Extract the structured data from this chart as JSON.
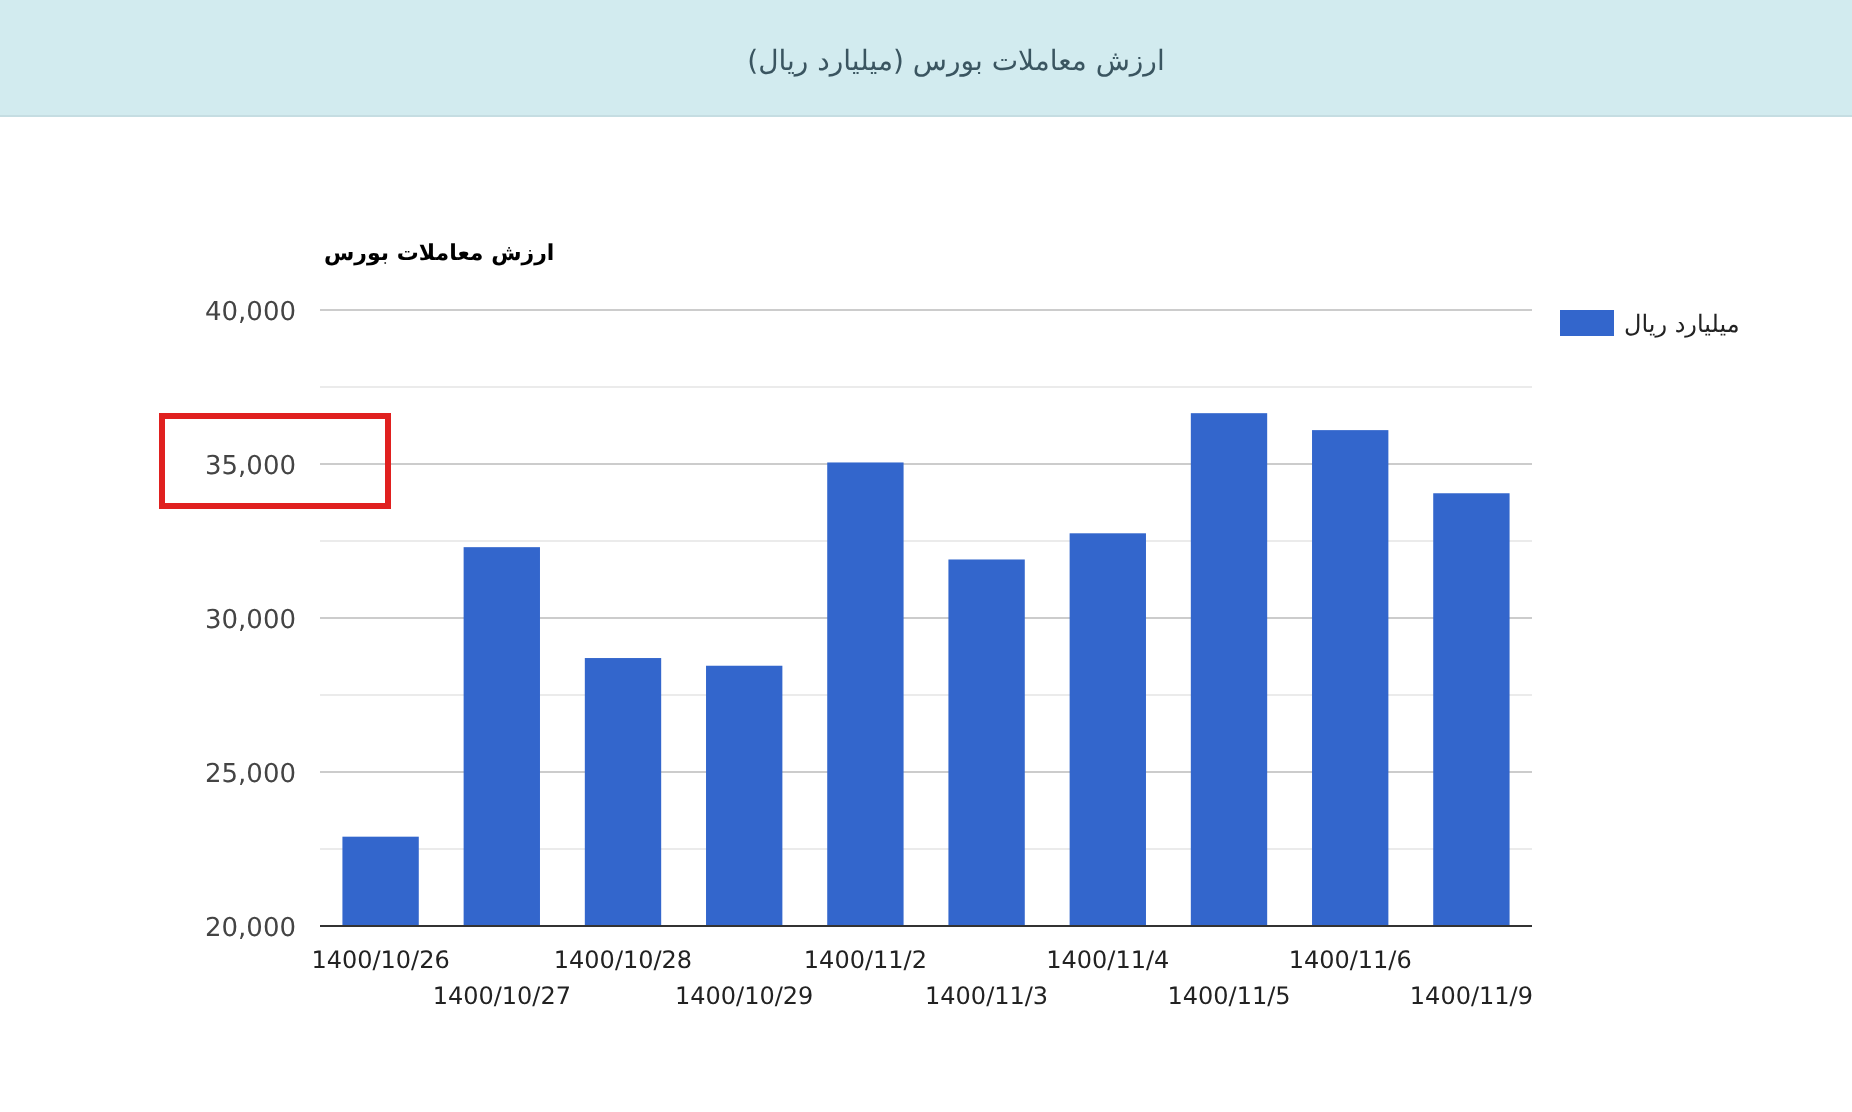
{
  "chart_data": {
    "type": "bar",
    "title": "ارزش معاملات بورس (میلیارد ریال)",
    "subtitle": "ارزش معاملات بورس",
    "categories": [
      "1400/10/26",
      "1400/10/27",
      "1400/10/28",
      "1400/10/29",
      "1400/11/2",
      "1400/11/3",
      "1400/11/4",
      "1400/11/5",
      "1400/11/6",
      "1400/11/9"
    ],
    "series": [
      {
        "name": "میلیارد ریال",
        "color": "#3366cc",
        "values": [
          22900,
          32300,
          28700,
          28450,
          35050,
          31900,
          32750,
          36650,
          36100,
          34050
        ]
      }
    ],
    "ylim": [
      20000,
      40000
    ],
    "yticks": [
      {
        "value": 20000,
        "label": "20,000"
      },
      {
        "value": 22500,
        "label": null
      },
      {
        "value": 25000,
        "label": "25,000"
      },
      {
        "value": 27500,
        "label": null
      },
      {
        "value": 30000,
        "label": "30,000"
      },
      {
        "value": 32500,
        "label": null
      },
      {
        "value": 35000,
        "label": "35,000"
      },
      {
        "value": 37500,
        "label": null
      },
      {
        "value": 40000,
        "label": "40,000"
      }
    ],
    "grid": "y",
    "legend": "right"
  }
}
